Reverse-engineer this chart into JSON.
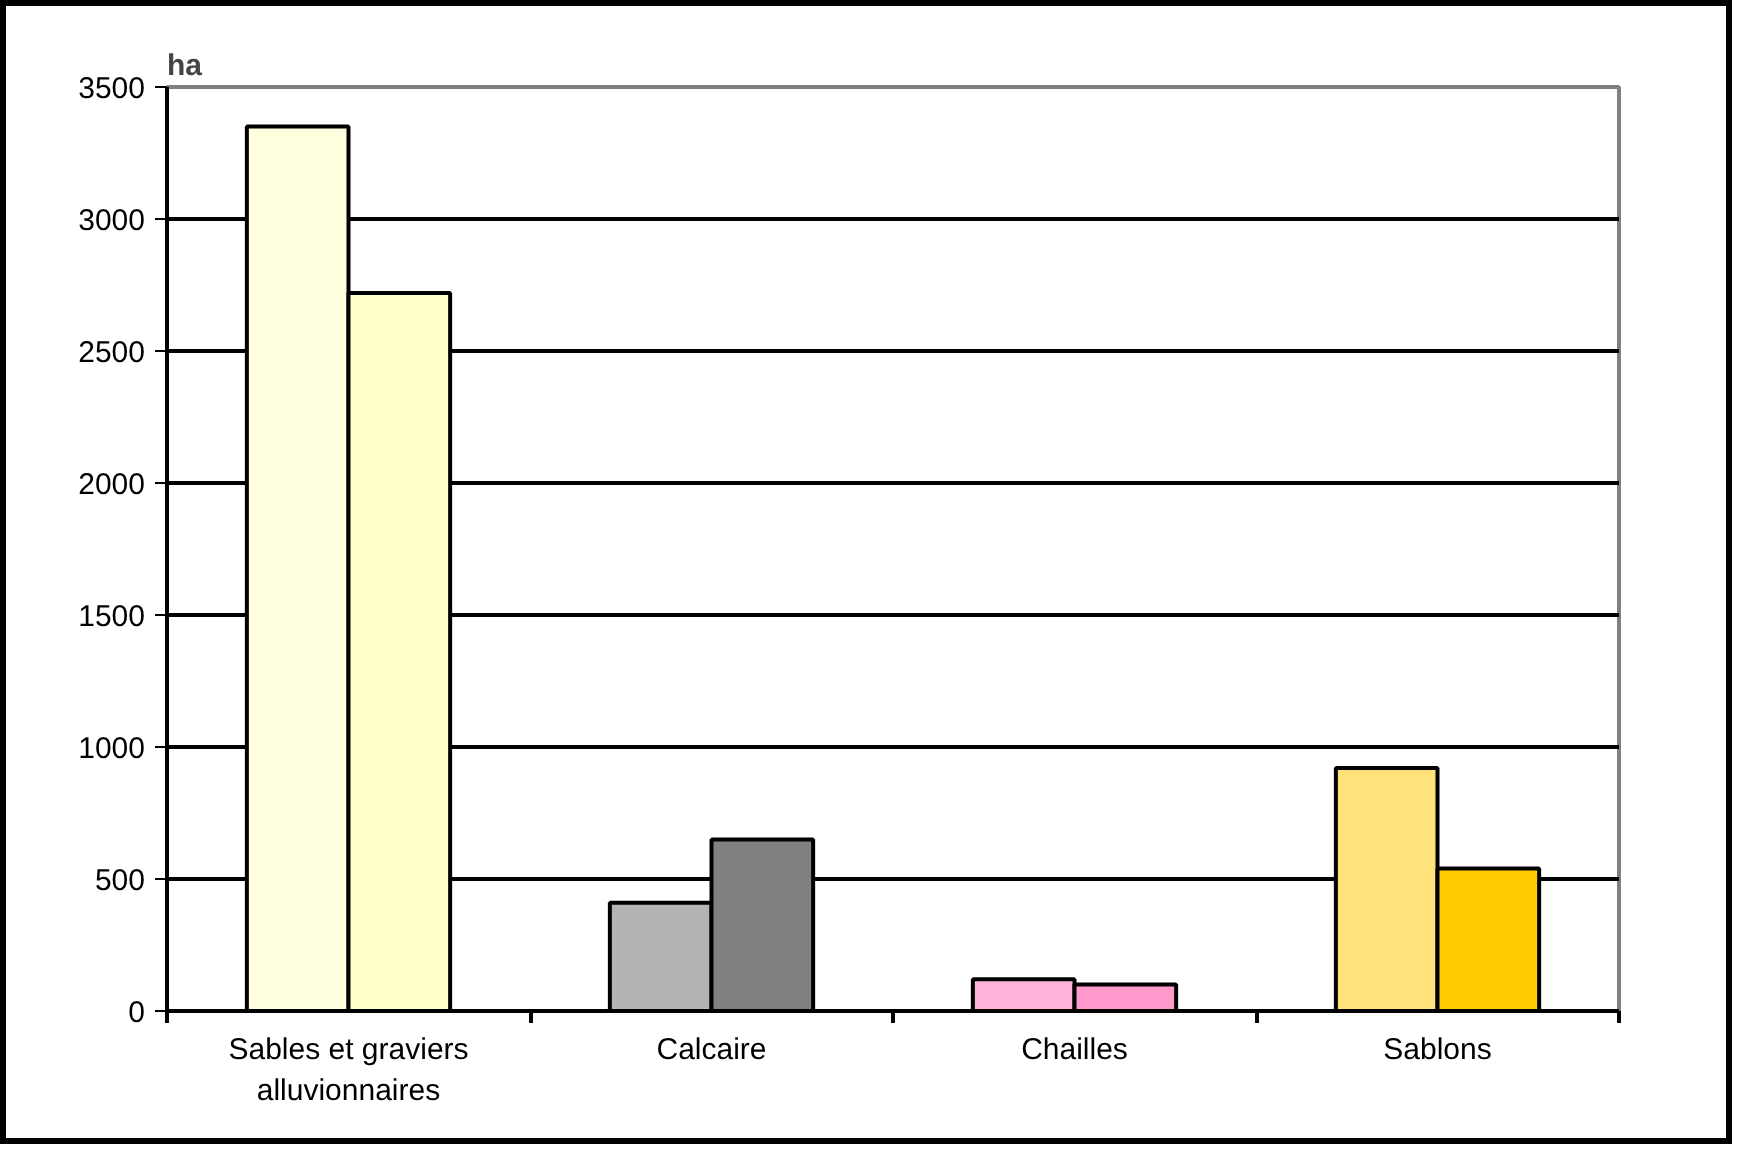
{
  "chart_data": {
    "type": "bar",
    "ylabel": "ha",
    "categories": [
      "Sables et graviers alluvionnaires",
      "Calcaire",
      "Chailles",
      "Sablons"
    ],
    "series": [
      {
        "colors": [
          "#ffffe0",
          "#b4b4b4",
          "#ffb3d9",
          "#ffe27a"
        ],
        "values": [
          3350,
          410,
          120,
          920
        ]
      },
      {
        "colors": [
          "#ffffcc",
          "#808080",
          "#ff99cc",
          "#ffcc00"
        ],
        "values": [
          2720,
          650,
          100,
          540
        ]
      }
    ],
    "ylim": [
      0,
      3500
    ],
    "yticks": [
      0,
      500,
      1000,
      1500,
      2000,
      2500,
      3000,
      3500
    ],
    "grid": "y"
  }
}
